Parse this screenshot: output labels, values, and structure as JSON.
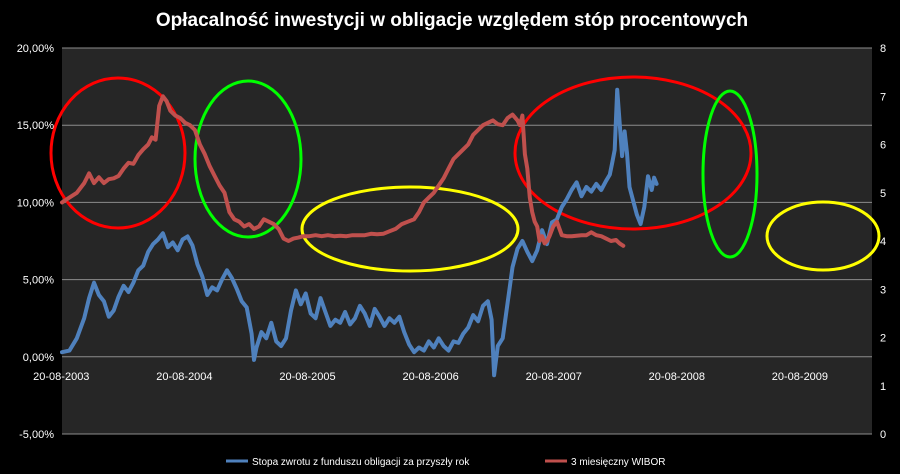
{
  "chart_data": {
    "type": "line",
    "title": "Opłacalność inwestycji w obligacje względem stóp procentowych",
    "xlabel": "",
    "ylabel": "",
    "x_ticks": [
      "20-08-2003",
      "20-08-2004",
      "20-08-2005",
      "20-08-2006",
      "20-08-2007",
      "20-08-2008",
      "20-08-2009"
    ],
    "x_range": [
      2003.64,
      2010.22
    ],
    "y_left": {
      "ticks": [
        "-5,00%",
        "0,00%",
        "5,00%",
        "10,00%",
        "15,00%",
        "20,00%"
      ],
      "range": [
        -5,
        20
      ]
    },
    "y_right": {
      "ticks": [
        "0",
        "1",
        "2",
        "3",
        "4",
        "5",
        "6",
        "7",
        "8"
      ],
      "range": [
        0,
        8
      ]
    },
    "grid": true,
    "legend": "bottom",
    "series": [
      {
        "name": "Stopa zwrotu z funduszu obligacji za przyszły rok",
        "axis": "left",
        "color": "#4f81bd",
        "points": [
          [
            2003.64,
            0.3
          ],
          [
            2003.7,
            0.4
          ],
          [
            2003.76,
            1.2
          ],
          [
            2003.82,
            2.5
          ],
          [
            2003.86,
            3.8
          ],
          [
            2003.9,
            4.8
          ],
          [
            2003.94,
            4.0
          ],
          [
            2003.98,
            3.6
          ],
          [
            2004.02,
            2.6
          ],
          [
            2004.06,
            3.0
          ],
          [
            2004.1,
            3.9
          ],
          [
            2004.14,
            4.6
          ],
          [
            2004.18,
            4.2
          ],
          [
            2004.22,
            4.8
          ],
          [
            2004.26,
            5.6
          ],
          [
            2004.3,
            5.9
          ],
          [
            2004.34,
            6.8
          ],
          [
            2004.38,
            7.3
          ],
          [
            2004.42,
            7.6
          ],
          [
            2004.46,
            8.0
          ],
          [
            2004.5,
            7.1
          ],
          [
            2004.54,
            7.4
          ],
          [
            2004.58,
            6.9
          ],
          [
            2004.62,
            7.6
          ],
          [
            2004.66,
            7.8
          ],
          [
            2004.7,
            7.2
          ],
          [
            2004.74,
            6.0
          ],
          [
            2004.78,
            5.2
          ],
          [
            2004.82,
            4.0
          ],
          [
            2004.86,
            4.5
          ],
          [
            2004.9,
            4.3
          ],
          [
            2004.94,
            5.0
          ],
          [
            2004.98,
            5.6
          ],
          [
            2005.02,
            5.1
          ],
          [
            2005.06,
            4.4
          ],
          [
            2005.1,
            3.6
          ],
          [
            2005.14,
            3.2
          ],
          [
            2005.18,
            1.5
          ],
          [
            2005.2,
            -0.2
          ],
          [
            2005.22,
            0.6
          ],
          [
            2005.26,
            1.6
          ],
          [
            2005.3,
            1.2
          ],
          [
            2005.34,
            2.2
          ],
          [
            2005.38,
            1.0
          ],
          [
            2005.42,
            0.7
          ],
          [
            2005.46,
            1.2
          ],
          [
            2005.5,
            3.0
          ],
          [
            2005.54,
            4.3
          ],
          [
            2005.58,
            3.4
          ],
          [
            2005.62,
            4.1
          ],
          [
            2005.66,
            2.8
          ],
          [
            2005.7,
            2.5
          ],
          [
            2005.74,
            3.8
          ],
          [
            2005.78,
            2.9
          ],
          [
            2005.82,
            2.0
          ],
          [
            2005.86,
            2.4
          ],
          [
            2005.9,
            2.2
          ],
          [
            2005.94,
            2.9
          ],
          [
            2005.98,
            2.1
          ],
          [
            2006.02,
            2.5
          ],
          [
            2006.06,
            3.3
          ],
          [
            2006.1,
            2.8
          ],
          [
            2006.14,
            2.0
          ],
          [
            2006.18,
            3.1
          ],
          [
            2006.22,
            2.6
          ],
          [
            2006.26,
            2.0
          ],
          [
            2006.3,
            2.5
          ],
          [
            2006.34,
            2.2
          ],
          [
            2006.38,
            2.6
          ],
          [
            2006.42,
            1.6
          ],
          [
            2006.46,
            0.8
          ],
          [
            2006.5,
            0.3
          ],
          [
            2006.54,
            0.6
          ],
          [
            2006.58,
            0.4
          ],
          [
            2006.62,
            1.0
          ],
          [
            2006.66,
            0.6
          ],
          [
            2006.7,
            1.2
          ],
          [
            2006.74,
            0.7
          ],
          [
            2006.78,
            0.4
          ],
          [
            2006.82,
            1.0
          ],
          [
            2006.86,
            0.9
          ],
          [
            2006.9,
            1.5
          ],
          [
            2006.94,
            1.9
          ],
          [
            2006.98,
            2.7
          ],
          [
            2007.02,
            2.3
          ],
          [
            2007.06,
            3.3
          ],
          [
            2007.1,
            3.6
          ],
          [
            2007.13,
            2.4
          ],
          [
            2007.15,
            -1.2
          ],
          [
            2007.18,
            0.7
          ],
          [
            2007.22,
            1.2
          ],
          [
            2007.26,
            3.5
          ],
          [
            2007.3,
            5.8
          ],
          [
            2007.34,
            7.0
          ],
          [
            2007.38,
            7.5
          ],
          [
            2007.42,
            6.8
          ],
          [
            2007.46,
            6.2
          ],
          [
            2007.5,
            6.9
          ],
          [
            2007.54,
            8.2
          ],
          [
            2007.58,
            7.3
          ],
          [
            2007.62,
            8.7
          ],
          [
            2007.66,
            8.9
          ],
          [
            2007.7,
            9.7
          ],
          [
            2007.74,
            10.2
          ],
          [
            2007.78,
            10.8
          ],
          [
            2007.82,
            11.3
          ],
          [
            2007.86,
            10.4
          ],
          [
            2007.9,
            11.0
          ],
          [
            2007.94,
            10.7
          ],
          [
            2007.98,
            11.2
          ],
          [
            2008.02,
            10.8
          ],
          [
            2008.06,
            11.4
          ],
          [
            2008.09,
            11.8
          ],
          [
            2008.11,
            12.6
          ],
          [
            2008.13,
            13.4
          ],
          [
            2008.15,
            17.3
          ],
          [
            2008.17,
            15.2
          ],
          [
            2008.19,
            13.0
          ],
          [
            2008.21,
            14.6
          ],
          [
            2008.23,
            13.2
          ],
          [
            2008.25,
            11.0
          ],
          [
            2008.28,
            10.1
          ],
          [
            2008.31,
            9.2
          ],
          [
            2008.34,
            8.6
          ],
          [
            2008.37,
            9.7
          ],
          [
            2008.4,
            11.7
          ],
          [
            2008.43,
            10.8
          ],
          [
            2008.45,
            11.6
          ],
          [
            2008.47,
            11.2
          ]
        ]
      },
      {
        "name": "3 miesięczny WIBOR",
        "axis": "right",
        "color": "#c0504d",
        "points": [
          [
            2003.64,
            4.8
          ],
          [
            2003.7,
            4.9
          ],
          [
            2003.76,
            5.0
          ],
          [
            2003.82,
            5.2
          ],
          [
            2003.86,
            5.4
          ],
          [
            2003.9,
            5.2
          ],
          [
            2003.94,
            5.32
          ],
          [
            2003.98,
            5.2
          ],
          [
            2004.02,
            5.28
          ],
          [
            2004.06,
            5.3
          ],
          [
            2004.1,
            5.35
          ],
          [
            2004.14,
            5.5
          ],
          [
            2004.18,
            5.62
          ],
          [
            2004.22,
            5.6
          ],
          [
            2004.26,
            5.78
          ],
          [
            2004.3,
            5.9
          ],
          [
            2004.34,
            6.0
          ],
          [
            2004.37,
            6.15
          ],
          [
            2004.4,
            6.1
          ],
          [
            2004.43,
            6.8
          ],
          [
            2004.46,
            7.0
          ],
          [
            2004.49,
            6.9
          ],
          [
            2004.52,
            6.7
          ],
          [
            2004.56,
            6.6
          ],
          [
            2004.6,
            6.55
          ],
          [
            2004.64,
            6.45
          ],
          [
            2004.68,
            6.4
          ],
          [
            2004.72,
            6.3
          ],
          [
            2004.76,
            6.0
          ],
          [
            2004.8,
            5.8
          ],
          [
            2004.84,
            5.55
          ],
          [
            2004.88,
            5.35
          ],
          [
            2004.92,
            5.15
          ],
          [
            2004.96,
            5.0
          ],
          [
            2005.0,
            4.6
          ],
          [
            2005.04,
            4.45
          ],
          [
            2005.08,
            4.4
          ],
          [
            2005.12,
            4.3
          ],
          [
            2005.16,
            4.35
          ],
          [
            2005.2,
            4.25
          ],
          [
            2005.24,
            4.3
          ],
          [
            2005.28,
            4.45
          ],
          [
            2005.32,
            4.4
          ],
          [
            2005.36,
            4.35
          ],
          [
            2005.4,
            4.25
          ],
          [
            2005.44,
            4.05
          ],
          [
            2005.48,
            4.0
          ],
          [
            2005.52,
            4.05
          ],
          [
            2005.56,
            4.07
          ],
          [
            2005.6,
            4.1
          ],
          [
            2005.65,
            4.1
          ],
          [
            2005.7,
            4.12
          ],
          [
            2005.75,
            4.1
          ],
          [
            2005.8,
            4.12
          ],
          [
            2005.85,
            4.1
          ],
          [
            2005.9,
            4.11
          ],
          [
            2005.95,
            4.1
          ],
          [
            2006.0,
            4.12
          ],
          [
            2006.05,
            4.12
          ],
          [
            2006.1,
            4.12
          ],
          [
            2006.15,
            4.15
          ],
          [
            2006.2,
            4.14
          ],
          [
            2006.25,
            4.15
          ],
          [
            2006.3,
            4.2
          ],
          [
            2006.35,
            4.25
          ],
          [
            2006.4,
            4.35
          ],
          [
            2006.45,
            4.4
          ],
          [
            2006.5,
            4.45
          ],
          [
            2006.54,
            4.6
          ],
          [
            2006.58,
            4.8
          ],
          [
            2006.62,
            4.9
          ],
          [
            2006.66,
            5.0
          ],
          [
            2006.7,
            5.15
          ],
          [
            2006.74,
            5.3
          ],
          [
            2006.78,
            5.5
          ],
          [
            2006.82,
            5.7
          ],
          [
            2006.86,
            5.8
          ],
          [
            2006.9,
            5.9
          ],
          [
            2006.94,
            6.0
          ],
          [
            2006.98,
            6.2
          ],
          [
            2007.02,
            6.3
          ],
          [
            2007.06,
            6.4
          ],
          [
            2007.1,
            6.45
          ],
          [
            2007.14,
            6.5
          ],
          [
            2007.18,
            6.42
          ],
          [
            2007.22,
            6.4
          ],
          [
            2007.26,
            6.55
          ],
          [
            2007.3,
            6.62
          ],
          [
            2007.34,
            6.5
          ],
          [
            2007.36,
            6.4
          ],
          [
            2007.38,
            6.6
          ],
          [
            2007.4,
            5.8
          ],
          [
            2007.42,
            5.5
          ],
          [
            2007.44,
            4.9
          ],
          [
            2007.46,
            4.6
          ],
          [
            2007.48,
            4.4
          ],
          [
            2007.5,
            4.3
          ],
          [
            2007.52,
            4.0
          ],
          [
            2007.54,
            4.1
          ],
          [
            2007.56,
            3.95
          ],
          [
            2007.58,
            4.0
          ],
          [
            2007.6,
            4.1
          ],
          [
            2007.63,
            4.3
          ],
          [
            2007.66,
            4.4
          ],
          [
            2007.7,
            4.12
          ],
          [
            2007.74,
            4.1
          ],
          [
            2007.78,
            4.1
          ],
          [
            2007.82,
            4.11
          ],
          [
            2007.86,
            4.12
          ],
          [
            2007.9,
            4.12
          ],
          [
            2007.94,
            4.18
          ],
          [
            2007.98,
            4.12
          ],
          [
            2008.02,
            4.1
          ],
          [
            2008.06,
            4.05
          ],
          [
            2008.1,
            4.0
          ],
          [
            2008.14,
            4.02
          ],
          [
            2008.17,
            3.95
          ],
          [
            2008.2,
            3.9
          ]
        ]
      }
    ],
    "annotations": [
      {
        "shape": "ellipse",
        "color": "#ff0000"
      },
      {
        "shape": "ellipse",
        "color": "#00ff00"
      },
      {
        "shape": "ellipse",
        "color": "#ffff00"
      },
      {
        "shape": "ellipse",
        "color": "#ff0000"
      },
      {
        "shape": "ellipse",
        "color": "#00ff00"
      },
      {
        "shape": "ellipse",
        "color": "#ffff00"
      }
    ]
  }
}
